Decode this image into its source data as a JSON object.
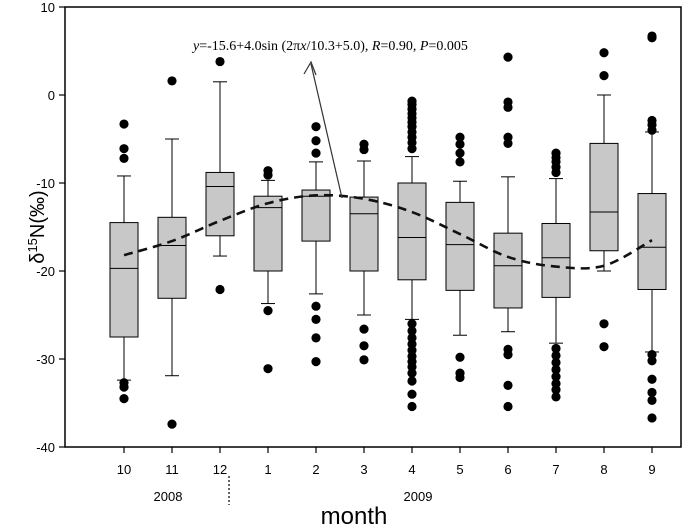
{
  "chart_data": {
    "type": "box",
    "xlabel": "month",
    "ylabel_main": "δ",
    "ylabel_sup": "15",
    "ylabel_rest": "N(‰)",
    "ylim": [
      -40,
      10
    ],
    "yticks": [
      10,
      0,
      -10,
      -20,
      -30,
      -40
    ],
    "year_labels": [
      "2008",
      "2009"
    ],
    "equation": {
      "y": "y",
      "p1": "=-15.6+4.0sin (2π",
      "x": "x",
      "p2": "/10.3+5.0), ",
      "R": "R",
      "p3": "=0.90,  ",
      "P": "P",
      "p4": "=0.005"
    },
    "categories": [
      "10",
      "11",
      "12",
      "1",
      "2",
      "3",
      "4",
      "5",
      "6",
      "7",
      "8",
      "9"
    ],
    "boxes": [
      {
        "month": "10",
        "whisker_low": -32.4,
        "q1": -27.5,
        "median": -19.7,
        "q3": -14.5,
        "whisker_high": -9.2,
        "outliers": [
          -3.3,
          -6.1,
          -7.2,
          -32.7,
          -33.2,
          -34.5
        ]
      },
      {
        "month": "11",
        "whisker_low": -31.9,
        "q1": -23.1,
        "median": -17.1,
        "q3": -13.9,
        "whisker_high": -5.0,
        "outliers": [
          1.6,
          -37.4
        ]
      },
      {
        "month": "12",
        "whisker_low": -18.3,
        "q1": -16.0,
        "median": -10.4,
        "q3": -8.8,
        "whisker_high": 1.5,
        "outliers": [
          3.8,
          -22.1
        ]
      },
      {
        "month": "1",
        "whisker_low": -23.7,
        "q1": -20.0,
        "median": -12.8,
        "q3": -11.5,
        "whisker_high": -9.7,
        "outliers": [
          -8.6,
          -9.1,
          -24.5,
          -31.1
        ]
      },
      {
        "month": "2",
        "whisker_low": -22.6,
        "q1": -16.6,
        "median": -11.5,
        "q3": -10.8,
        "whisker_high": -7.6,
        "outliers": [
          -3.6,
          -5.2,
          -6.6,
          -24.0,
          -25.5,
          -27.6,
          -30.3
        ]
      },
      {
        "month": "3",
        "whisker_low": -25.0,
        "q1": -20.0,
        "median": -13.5,
        "q3": -11.6,
        "whisker_high": -7.5,
        "outliers": [
          -5.6,
          -6.2,
          -26.6,
          -28.5,
          -30.1
        ]
      },
      {
        "month": "4",
        "whisker_low": -25.5,
        "q1": -21.0,
        "median": -16.2,
        "q3": -10.0,
        "whisker_high": -7.0,
        "outliers": [
          -0.7,
          -1.1,
          -1.6,
          -2.1,
          -2.6,
          -3.1,
          -3.6,
          -4.2,
          -4.8,
          -5.4,
          -6.1,
          -26.0,
          -26.8,
          -27.6,
          -28.3,
          -29.0,
          -29.7,
          -30.3,
          -30.9,
          -31.6,
          -32.5,
          -34.0,
          -35.4
        ]
      },
      {
        "month": "5",
        "whisker_low": -27.3,
        "q1": -22.2,
        "median": -17.0,
        "q3": -12.2,
        "whisker_high": -9.8,
        "outliers": [
          -4.8,
          -5.6,
          -6.6,
          -7.6,
          -29.8,
          -31.6,
          -32.1
        ]
      },
      {
        "month": "6",
        "whisker_low": -26.9,
        "q1": -24.2,
        "median": -19.4,
        "q3": -15.7,
        "whisker_high": -9.3,
        "outliers": [
          4.3,
          -0.8,
          -1.4,
          -4.8,
          -5.5,
          -28.9,
          -29.5,
          -33.0,
          -35.4
        ]
      },
      {
        "month": "7",
        "whisker_low": -28.2,
        "q1": -23.0,
        "median": -18.5,
        "q3": -14.6,
        "whisker_high": -9.5,
        "outliers": [
          -6.6,
          -7.1,
          -7.6,
          -8.2,
          -8.8,
          -28.8,
          -29.6,
          -30.4,
          -31.2,
          -32.0,
          -32.8,
          -33.5,
          -34.3
        ]
      },
      {
        "month": "8",
        "whisker_low": -20.0,
        "q1": -17.7,
        "median": -13.3,
        "q3": -5.5,
        "whisker_high": 0.0,
        "outliers": [
          4.8,
          2.2,
          -26.0,
          -28.6
        ]
      },
      {
        "month": "9",
        "whisker_low": -29.2,
        "q1": -22.1,
        "median": -17.3,
        "q3": -11.2,
        "whisker_high": -4.2,
        "outliers": [
          6.7,
          6.5,
          -2.9,
          -3.4,
          -4.0,
          -29.5,
          -30.2,
          -32.3,
          -33.8,
          -34.7,
          -36.7
        ]
      }
    ],
    "fit_curve": [
      {
        "month_index": 0,
        "y": -18.2
      },
      {
        "month_index": 1,
        "y": -16.6
      },
      {
        "month_index": 2,
        "y": -14.3
      },
      {
        "month_index": 3,
        "y": -12.3
      },
      {
        "month_index": 4,
        "y": -11.4
      },
      {
        "month_index": 5,
        "y": -11.8
      },
      {
        "month_index": 6,
        "y": -13.3
      },
      {
        "month_index": 7,
        "y": -15.8
      },
      {
        "month_index": 8,
        "y": -18.4
      },
      {
        "month_index": 9,
        "y": -19.5
      },
      {
        "month_index": 10,
        "y": -19.4
      },
      {
        "month_index": 11,
        "y": -16.5
      }
    ],
    "grid": false,
    "legend": "none"
  }
}
